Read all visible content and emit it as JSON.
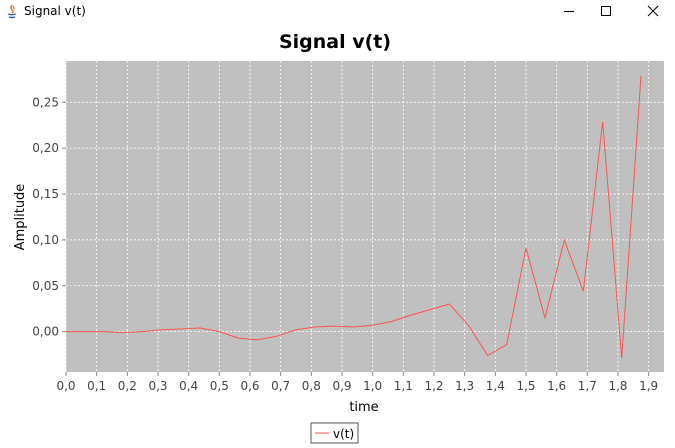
{
  "window": {
    "title": "Signal v(t)",
    "buttons": [
      "minimize",
      "maximize",
      "close"
    ]
  },
  "chart_data": {
    "type": "line",
    "title": "Signal v(t)",
    "xlabel": "time",
    "ylabel": "Amplitude",
    "xlim": [
      0.0,
      1.95
    ],
    "ylim": [
      -0.044,
      0.295
    ],
    "x_ticks": [
      0.0,
      0.1,
      0.2,
      0.3,
      0.4,
      0.5,
      0.6,
      0.7,
      0.8,
      0.9,
      1.0,
      1.1,
      1.2,
      1.3,
      1.4,
      1.5,
      1.6,
      1.7,
      1.8,
      1.9
    ],
    "x_tick_labels": [
      "0,0",
      "0,1",
      "0,2",
      "0,3",
      "0,4",
      "0,5",
      "0,6",
      "0,7",
      "0,8",
      "0,9",
      "1,0",
      "1,1",
      "1,2",
      "1,3",
      "1,4",
      "1,5",
      "1,6",
      "1,7",
      "1,8",
      "1,9"
    ],
    "y_ticks": [
      0.0,
      0.05,
      0.1,
      0.15,
      0.2,
      0.25
    ],
    "y_tick_labels": [
      "0,00",
      "0,05",
      "0,10",
      "0,15",
      "0,20",
      "0,25"
    ],
    "grid": true,
    "legend": "bottom-center",
    "colors": {
      "plot_background": "#c0c0c0",
      "grid": "#ffffff",
      "series": "#ff5555"
    },
    "series": [
      {
        "name": "v(t)",
        "x": [
          0.0,
          0.062,
          0.125,
          0.187,
          0.25,
          0.312,
          0.375,
          0.437,
          0.5,
          0.562,
          0.625,
          0.687,
          0.75,
          0.812,
          0.875,
          0.937,
          1.0,
          1.062,
          1.125,
          1.187,
          1.25,
          1.312,
          1.375,
          1.437,
          1.5,
          1.562,
          1.625,
          1.687,
          1.75,
          1.812,
          1.875
        ],
        "values": [
          0.0,
          0.0,
          0.0,
          -0.001,
          0.0,
          0.002,
          0.003,
          0.004,
          0.0,
          -0.007,
          -0.009,
          -0.005,
          0.002,
          0.005,
          0.006,
          0.005,
          0.007,
          0.011,
          0.018,
          0.024,
          0.03,
          0.007,
          -0.026,
          -0.014,
          0.091,
          0.015,
          0.1,
          0.044,
          0.229,
          -0.029,
          0.279
        ]
      }
    ]
  }
}
